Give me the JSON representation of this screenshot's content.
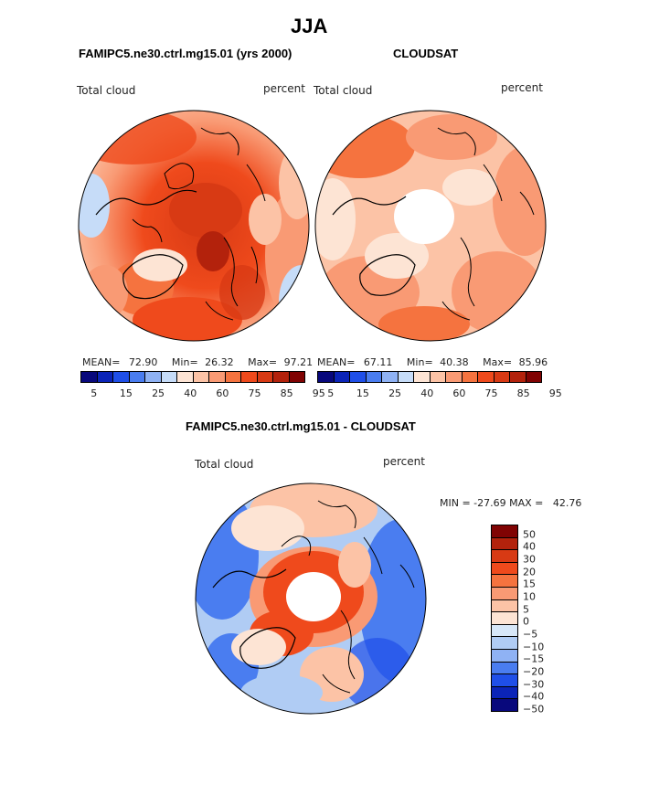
{
  "figure": {
    "season": "JJA",
    "panel_left_title": "FAMIPC5.ne30.ctrl.mg15.01 (yrs 2000)",
    "panel_right_title": "CLOUDSAT",
    "panel_bottom_title": "FAMIPC5.ne30.ctrl.mg15.01 - CLOUDSAT"
  },
  "panels": {
    "left": {
      "variable": "Total cloud",
      "units": "percent",
      "stats": {
        "mean_label": "MEAN=",
        "mean": "72.90",
        "min_label": "Min=",
        "min": "26.32",
        "max_label": "Max=",
        "max": "97.21"
      }
    },
    "right": {
      "variable": "Total cloud",
      "units": "percent",
      "stats": {
        "mean_label": "MEAN=",
        "mean": "67.11",
        "min_label": "Min=",
        "min": "40.38",
        "max_label": "Max=",
        "max": "85.96"
      }
    },
    "bottom": {
      "variable": "Total cloud",
      "units": "percent",
      "range_text": "MIN = -27.69 MAX =   42.76"
    }
  },
  "colorbars": {
    "abs": {
      "colors": [
        "#08087c",
        "#0b24b8",
        "#1f4fe8",
        "#4a7df0",
        "#8fb2f4",
        "#c6dcf8",
        "#fde4d4",
        "#fcc3a6",
        "#f99a74",
        "#f5733f",
        "#ef4a1c",
        "#d83a14",
        "#b3220c",
        "#800303"
      ],
      "labels": [
        "5",
        "15",
        "25",
        "40",
        "60",
        "75",
        "85",
        "95"
      ]
    },
    "diff": {
      "colors": [
        "#800303",
        "#b3220c",
        "#d83a14",
        "#ef4a1c",
        "#f5733f",
        "#f99a74",
        "#fcc3a6",
        "#fde4d4",
        "#d7e7f8",
        "#b0ccf4",
        "#8fb2f4",
        "#4a7df0",
        "#1f4fe8",
        "#0b24b8",
        "#08087c"
      ],
      "labels": [
        "50",
        "40",
        "30",
        "20",
        "15",
        "10",
        "5",
        "0",
        "-5",
        "-10",
        "-15",
        "-20",
        "-30",
        "-40",
        "-50"
      ]
    }
  }
}
